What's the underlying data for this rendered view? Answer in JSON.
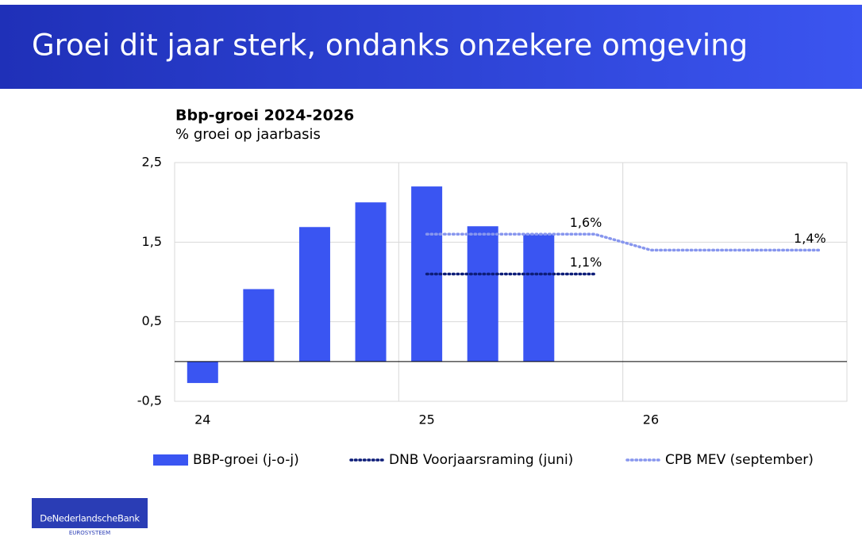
{
  "header": {
    "title": "Groei dit jaar sterk, ondanks onzekere omgeving"
  },
  "chart_data": {
    "type": "bar",
    "title": "Bbp-groei 2024-2026",
    "subtitle": "% groei op jaarbasis",
    "categories": [
      "24",
      null,
      null,
      null,
      "25",
      null,
      null,
      null,
      "26",
      null,
      null,
      null
    ],
    "ylim": [
      -0.5,
      2.5
    ],
    "yticks": [
      {
        "value": -0.5,
        "label": "-0,5"
      },
      {
        "value": 0.5,
        "label": "0,5"
      },
      {
        "value": 1.5,
        "label": "1,5"
      },
      {
        "value": 2.5,
        "label": "2,5"
      }
    ],
    "grid": true,
    "legend": "bottom",
    "series": [
      {
        "name": "BBP-groei (j-o-j)",
        "type": "bar",
        "color": "#3a55f2",
        "values": [
          -0.27,
          0.91,
          1.69,
          2.0,
          2.2,
          1.7,
          1.6,
          null,
          null,
          null,
          null,
          null
        ]
      },
      {
        "name": "DNB Voorjaarsraming (juni)",
        "type": "line",
        "color": "#0d1d78",
        "values": [
          null,
          null,
          null,
          null,
          1.1,
          1.1,
          1.1,
          1.1,
          null,
          null,
          null,
          null
        ],
        "value_labels": [
          null,
          null,
          null,
          null,
          null,
          null,
          null,
          "1,1%",
          null,
          null,
          null,
          null
        ]
      },
      {
        "name": "CPB MEV (september)",
        "type": "line",
        "color": "#8796ee",
        "values": [
          null,
          null,
          null,
          null,
          1.6,
          1.6,
          1.6,
          1.6,
          1.4,
          1.4,
          1.4,
          1.4
        ],
        "value_labels": [
          null,
          null,
          null,
          null,
          null,
          null,
          null,
          "1,6%",
          null,
          null,
          null,
          "1,4%"
        ]
      }
    ]
  },
  "logo": {
    "name": "DeNederlandscheBank",
    "sub": "EUROSYSTEEM"
  }
}
